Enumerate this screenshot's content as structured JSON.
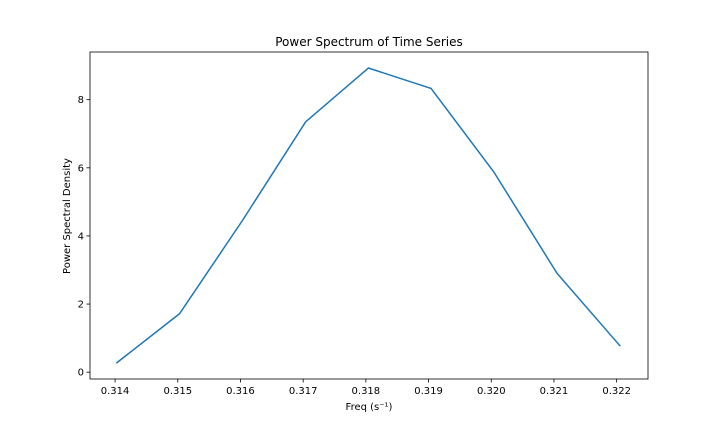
{
  "chart_data": {
    "type": "line",
    "title": "Power Spectrum of Time Series",
    "xlabel": "Freq (s⁻¹)",
    "ylabel": "Power Spectral Density",
    "xlim": [
      0.3136,
      0.3225
    ],
    "ylim": [
      -0.2,
      9.4
    ],
    "x_ticks": [
      0.314,
      0.315,
      0.316,
      0.317,
      0.318,
      0.319,
      0.32,
      0.321,
      0.322
    ],
    "x_tick_labels": [
      "0.314",
      "0.315",
      "0.316",
      "0.317",
      "0.318",
      "0.319",
      "0.320",
      "0.321",
      "0.322"
    ],
    "y_ticks": [
      0,
      2,
      4,
      6,
      8
    ],
    "y_tick_labels": [
      "0",
      "2",
      "4",
      "6",
      "8"
    ],
    "grid": false,
    "series": [
      {
        "color": "#1f77b4",
        "x": [
          0.31403,
          0.31503,
          0.31603,
          0.31704,
          0.31804,
          0.31904,
          0.32004,
          0.32105,
          0.32205
        ],
        "y": [
          0.28,
          1.72,
          4.45,
          7.35,
          8.93,
          8.33,
          5.88,
          2.9,
          0.78
        ]
      }
    ]
  }
}
